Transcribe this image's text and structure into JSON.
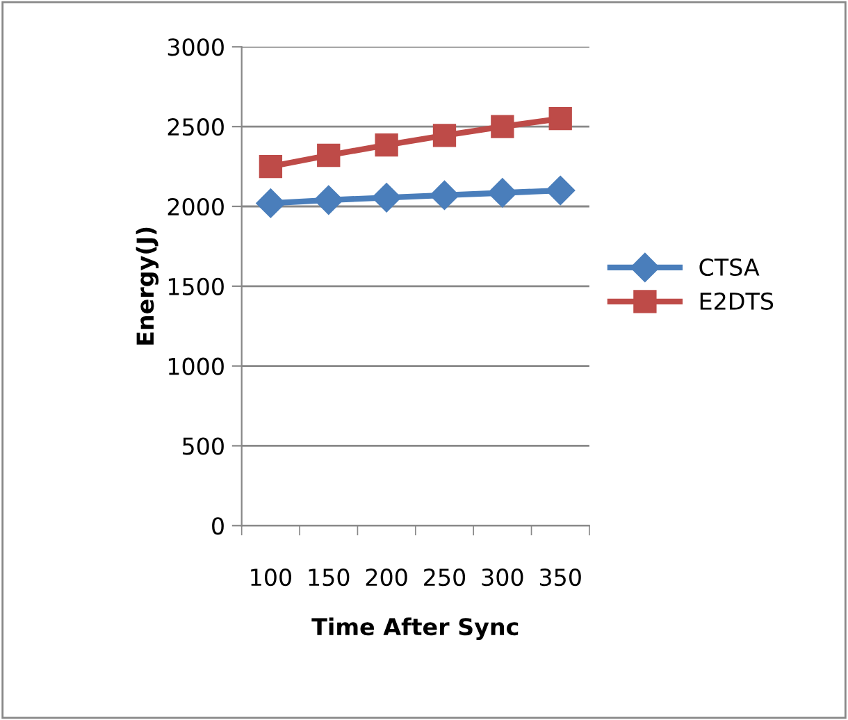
{
  "chart_data": {
    "type": "line",
    "xlabel": "Time After Sync",
    "ylabel": "Energy(J)",
    "categories": [
      "100",
      "150",
      "200",
      "250",
      "300",
      "350"
    ],
    "series": [
      {
        "name": "CTSA",
        "color": "#4a7ebb",
        "marker": "diamond",
        "values": [
          2020,
          2040,
          2055,
          2070,
          2085,
          2100
        ]
      },
      {
        "name": "E2DTS",
        "color": "#be4b48",
        "marker": "square",
        "values": [
          2250,
          2320,
          2385,
          2445,
          2500,
          2550
        ]
      }
    ],
    "ylim": [
      0,
      3000
    ],
    "yticks": [
      0,
      500,
      1000,
      1500,
      2000,
      2500,
      3000
    ],
    "grid": "y",
    "legend": "right",
    "line_style": "solid"
  }
}
